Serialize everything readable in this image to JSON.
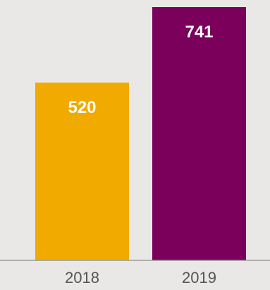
{
  "chart_data": {
    "type": "bar",
    "categories": [
      "2018",
      "2019"
    ],
    "values": [
      520,
      741
    ],
    "colors": [
      "#f0aa00",
      "#7a005c"
    ],
    "title": "",
    "xlabel": "",
    "ylabel": "",
    "ylim": [
      0,
      741
    ],
    "grid": false,
    "legend": "none",
    "data_labels": [
      "520",
      "741"
    ],
    "axis_color": "#9a9a9a",
    "background": "#e9e8e6"
  }
}
